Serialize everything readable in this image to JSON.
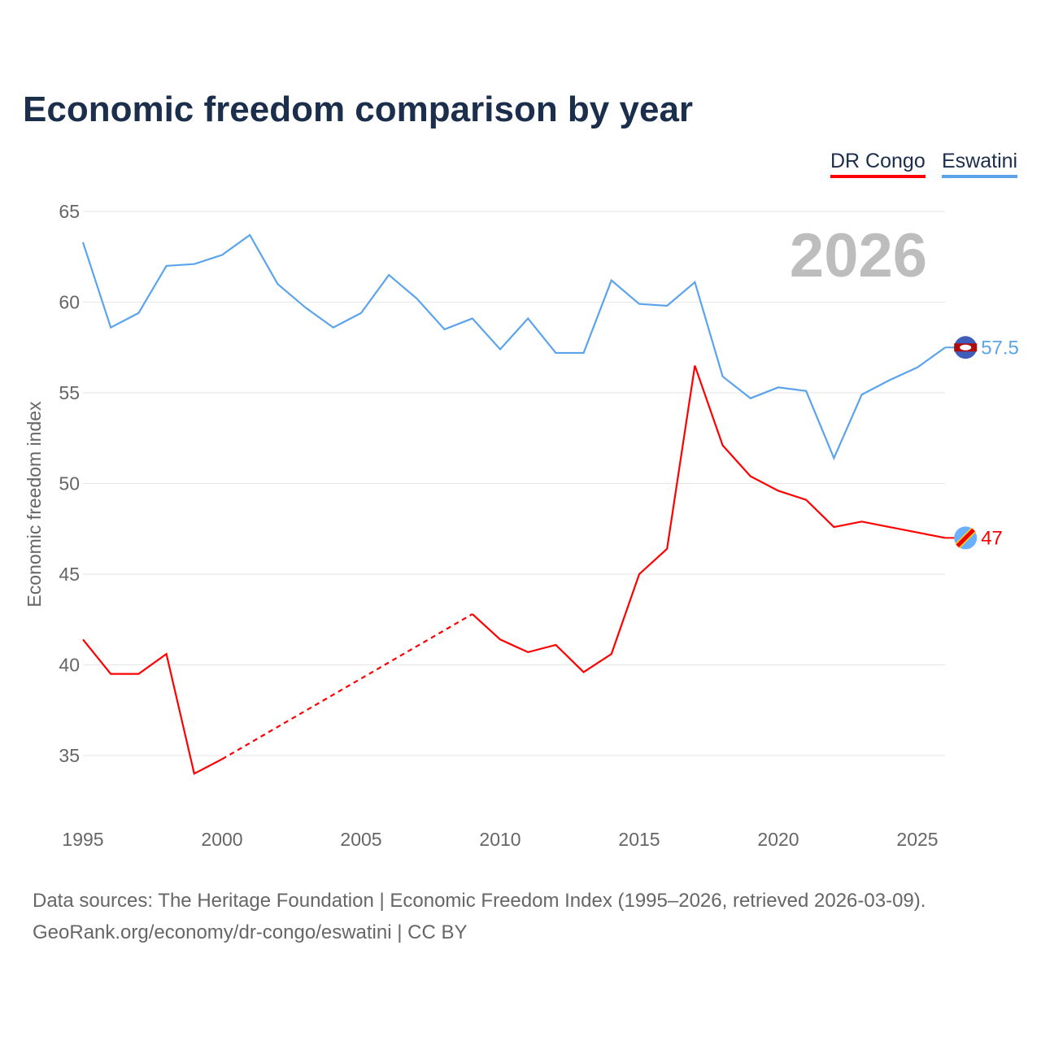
{
  "title": "Economic freedom comparison by year",
  "legend": [
    {
      "label": "DR Congo",
      "color": "#ff0000"
    },
    {
      "label": "Eswatini",
      "color": "#5ba4ec"
    }
  ],
  "source_line1": "Data sources: The Heritage Foundation | Economic Freedom Index (1995–2026, retrieved 2026-03-09).",
  "source_line2": "GeoRank.org/economy/dr-congo/eswatini | CC BY",
  "chart_data": {
    "type": "line",
    "title": "Economic freedom comparison by year",
    "ylabel": "Economic freedom index",
    "xlabel": "",
    "ylim": [
      31,
      66
    ],
    "xlim": [
      1995,
      2026
    ],
    "yticks": [
      35,
      40,
      45,
      50,
      55,
      60,
      65
    ],
    "xticks": [
      1995,
      2000,
      2005,
      2010,
      2015,
      2020,
      2025
    ],
    "year_watermark": "2026",
    "grid": true,
    "legend_position": "top-right",
    "series": [
      {
        "name": "DR Congo",
        "color": "#ff0000",
        "end_label": "47",
        "x": [
          1995,
          1996,
          1997,
          1998,
          1999,
          2000,
          2009,
          2010,
          2011,
          2012,
          2013,
          2014,
          2015,
          2016,
          2017,
          2018,
          2019,
          2020,
          2021,
          2022,
          2023,
          2024,
          2025,
          2026
        ],
        "values": [
          41.4,
          39.5,
          39.5,
          40.6,
          34.0,
          34.8,
          42.8,
          41.4,
          40.7,
          41.1,
          39.6,
          40.6,
          45.0,
          46.4,
          56.5,
          52.1,
          50.4,
          49.6,
          49.1,
          47.6,
          47.9,
          47.6,
          47.3,
          47.0
        ],
        "gap_after": 2000
      },
      {
        "name": "Eswatini",
        "color": "#5ba4ec",
        "end_label": "57.5",
        "x": [
          1995,
          1996,
          1997,
          1998,
          1999,
          2000,
          2001,
          2002,
          2003,
          2004,
          2005,
          2006,
          2007,
          2008,
          2009,
          2010,
          2011,
          2012,
          2013,
          2014,
          2015,
          2016,
          2017,
          2018,
          2019,
          2020,
          2021,
          2022,
          2023,
          2024,
          2025,
          2026
        ],
        "values": [
          63.3,
          58.6,
          59.4,
          62.0,
          62.1,
          62.6,
          63.7,
          61.0,
          59.7,
          58.6,
          59.4,
          61.5,
          60.2,
          58.5,
          59.1,
          57.4,
          59.1,
          57.2,
          57.2,
          61.2,
          59.9,
          59.8,
          61.1,
          55.9,
          54.7,
          55.3,
          55.1,
          51.4,
          54.9,
          55.7,
          56.4,
          57.5
        ]
      }
    ]
  }
}
